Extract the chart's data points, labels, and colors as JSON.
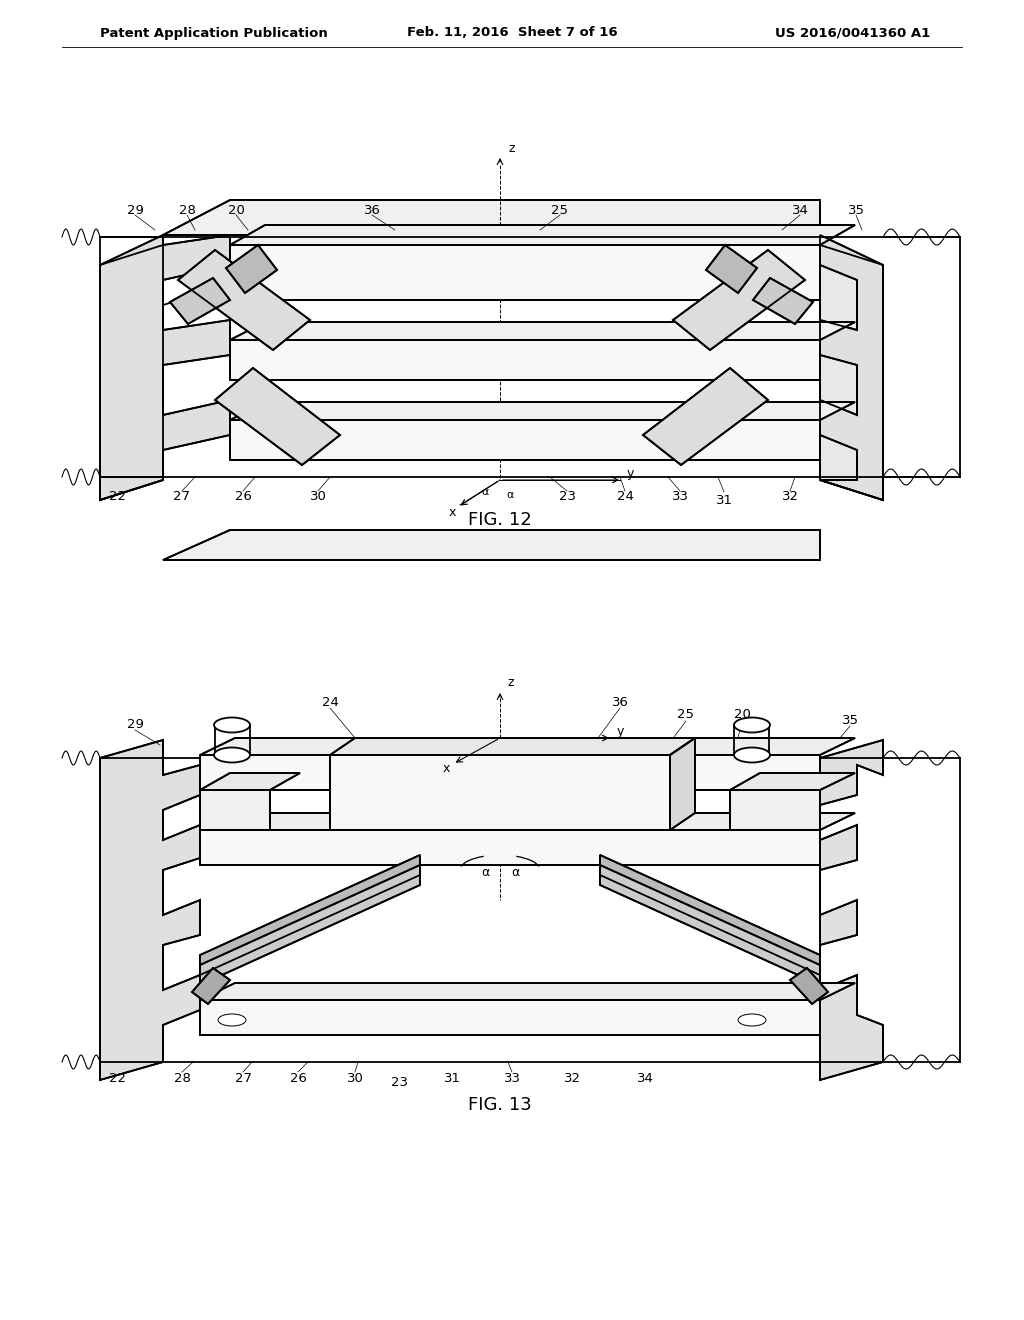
{
  "background_color": "#ffffff",
  "header_left": "Patent Application Publication",
  "header_mid": "Feb. 11, 2016  Sheet 7 of 16",
  "header_right": "US 2016/0041360 A1",
  "fig12_caption": "FIG. 12",
  "fig13_caption": "FIG. 13",
  "lc": "#000000",
  "lw": 1.3,
  "tlw": 0.7,
  "header_fontsize": 9.5,
  "caption_fontsize": 13,
  "label_fontsize": 9.5
}
